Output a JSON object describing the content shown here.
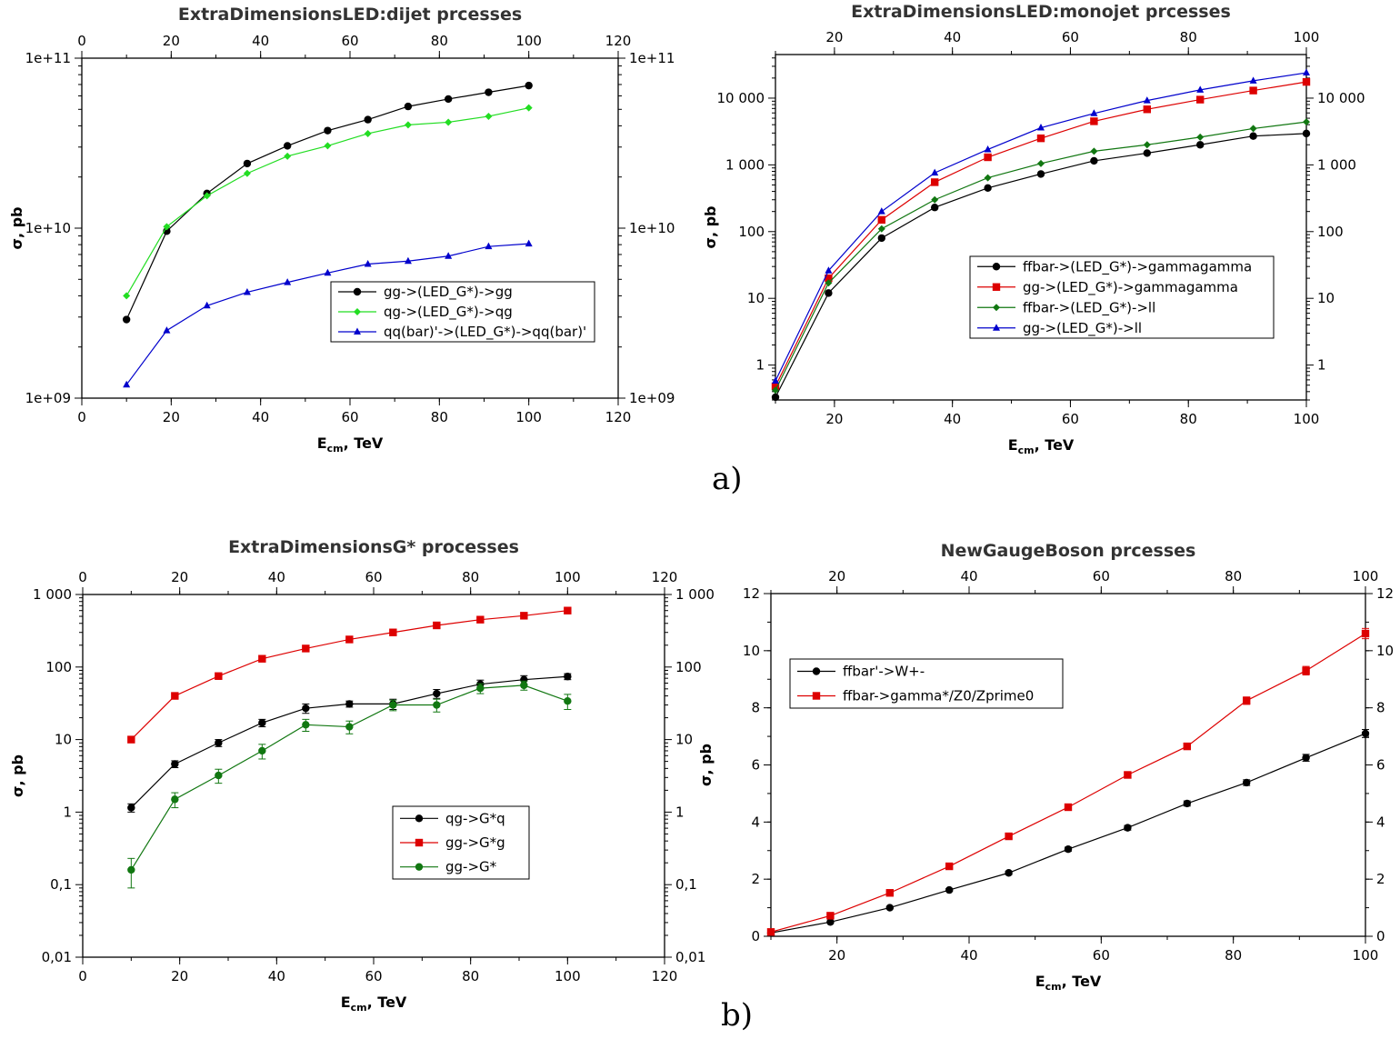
{
  "panel_labels": {
    "a": "a)",
    "b": "b)"
  },
  "chart_data": [
    {
      "type": "line",
      "scale": "log",
      "title": "ExtraDimensionsLED:dijet prcesses",
      "xlabel_main": "E",
      "xlabel_sub": "cm",
      "xlabel_unit": ", TeV",
      "ylabel": "σ, pb",
      "xlim": [
        0,
        120
      ],
      "ylim": [
        1000000000.0,
        100000000000.0
      ],
      "x_ticks": [
        0,
        20,
        40,
        60,
        80,
        100,
        120
      ],
      "x_tick_labels": [
        "0",
        "20",
        "40",
        "60",
        "80",
        "100",
        "120"
      ],
      "y_ticks": [
        1000000000.0,
        10000000000.0,
        100000000000.0
      ],
      "y_tick_labels": [
        "1e+09",
        "1e+10",
        "1e+11"
      ],
      "x": [
        10,
        19,
        28,
        37,
        46,
        55,
        64,
        73,
        82,
        91,
        100
      ],
      "legend_position": "center-right",
      "series": [
        {
          "name": "gg->(LED_G*)->gg",
          "color": "#000000",
          "marker": "circle",
          "values": [
            2900000000.0,
            9600000000.0,
            16000000000.0,
            24000000000.0,
            30500000000.0,
            37500000000.0,
            43500000000.0,
            52000000000.0,
            57500000000.0,
            63000000000.0,
            69000000000.0
          ]
        },
        {
          "name": "qg->(LED_G*)->qg",
          "color": "#22dd22",
          "marker": "diamond",
          "values": [
            4000000000.0,
            10200000000.0,
            15500000000.0,
            21000000000.0,
            26500000000.0,
            30500000000.0,
            36000000000.0,
            40500000000.0,
            42000000000.0,
            45500000000.0,
            51000000000.0
          ]
        },
        {
          "name": "qq(bar)'->(LED_G*)->qq(bar)'",
          "color": "#0000cc",
          "marker": "triangle",
          "values": [
            1200000000.0,
            2500000000.0,
            3500000000.0,
            4200000000.0,
            4800000000.0,
            5450000000.0,
            6150000000.0,
            6400000000.0,
            6850000000.0,
            7800000000.0,
            8100000000.0
          ]
        }
      ]
    },
    {
      "type": "line",
      "scale": "log",
      "title": "ExtraDimensionsLED:monojet prcesses",
      "xlabel_main": "E",
      "xlabel_sub": "cm",
      "xlabel_unit": ", TeV",
      "ylabel": "σ, pb",
      "xlim": [
        10,
        100
      ],
      "ylim": [
        0.3,
        45000
      ],
      "x_ticks": [
        20,
        40,
        60,
        80,
        100
      ],
      "x_tick_labels": [
        "20",
        "40",
        "60",
        "80",
        "100"
      ],
      "y_ticks": [
        1,
        10,
        100,
        1000,
        10000
      ],
      "y_tick_labels": [
        "1",
        "10",
        "100",
        "1 000",
        "10 000"
      ],
      "x": [
        10,
        19,
        28,
        37,
        46,
        55,
        64,
        73,
        82,
        91,
        100
      ],
      "legend_position": "center-right",
      "series": [
        {
          "name": "ffbar->(LED_G*)->gammagamma",
          "color": "#000000",
          "marker": "circle",
          "values": [
            0.33,
            12,
            80,
            230,
            450,
            730,
            1150,
            1500,
            2000,
            2700,
            2950
          ]
        },
        {
          "name": "gg->(LED_G*)->gammagamma",
          "color": "#dd0000",
          "marker": "square",
          "values": [
            0.48,
            20,
            150,
            550,
            1300,
            2500,
            4500,
            6800,
            9500,
            13000,
            17500
          ]
        },
        {
          "name": "ffbar->(LED_G*)->ll",
          "color": "#117711",
          "marker": "diamond",
          "values": [
            0.42,
            17,
            110,
            300,
            640,
            1050,
            1600,
            2000,
            2600,
            3500,
            4400
          ]
        },
        {
          "name": "gg->(LED_G*)->ll",
          "color": "#0000cc",
          "marker": "triangle",
          "values": [
            0.58,
            26,
            200,
            760,
            1700,
            3600,
            5900,
            9200,
            13300,
            18200,
            24000
          ]
        }
      ]
    },
    {
      "type": "line",
      "scale": "log",
      "title": "ExtraDimensionsG* processes",
      "xlabel_main": "E",
      "xlabel_sub": "cm",
      "xlabel_unit": ", TeV",
      "ylabel": "σ, pb",
      "xlim": [
        0,
        120
      ],
      "ylim": [
        0.01,
        1000
      ],
      "x_ticks": [
        0,
        20,
        40,
        60,
        80,
        100,
        120
      ],
      "x_tick_labels": [
        "0",
        "20",
        "40",
        "60",
        "80",
        "100",
        "120"
      ],
      "y_ticks": [
        0.01,
        0.1,
        1,
        10,
        100,
        1000
      ],
      "y_tick_labels": [
        "0,01",
        "0,1",
        "1",
        "10",
        "100",
        "1 000"
      ],
      "x": [
        10,
        19,
        28,
        37,
        46,
        55,
        64,
        73,
        82,
        91,
        100
      ],
      "legend_position": "center-right",
      "series": [
        {
          "name": "qg->G*q",
          "color": "#000000",
          "marker": "circle",
          "values": [
            1.15,
            4.6,
            9.0,
            17,
            27,
            31,
            31,
            43,
            58,
            67,
            74
          ],
          "errors": [
            0.15,
            0.5,
            1.0,
            2.0,
            4.0,
            3.0,
            5.0,
            6.0,
            8.0,
            9.0,
            7.0
          ]
        },
        {
          "name": "gg->G*g",
          "color": "#dd0000",
          "marker": "square",
          "values": [
            10,
            40,
            75,
            130,
            180,
            240,
            300,
            375,
            450,
            510,
            600
          ]
        },
        {
          "name": "gg->G*",
          "color": "#117711",
          "marker": "circle",
          "values": [
            0.16,
            1.5,
            3.2,
            7.0,
            16,
            15,
            30,
            30,
            51,
            56,
            34
          ],
          "errors": [
            0.07,
            0.35,
            0.7,
            1.6,
            3.0,
            3.0,
            5.0,
            6.0,
            8.0,
            8.0,
            8.0
          ]
        }
      ]
    },
    {
      "type": "line",
      "scale": "linear",
      "title": "NewGaugeBoson prcesses",
      "xlabel_main": "E",
      "xlabel_sub": "cm",
      "xlabel_unit": ", TeV",
      "ylabel": "σ, pb",
      "xlim": [
        10,
        100
      ],
      "ylim": [
        0,
        12
      ],
      "x_ticks": [
        20,
        40,
        60,
        80,
        100
      ],
      "x_tick_labels": [
        "20",
        "40",
        "60",
        "80",
        "100"
      ],
      "y_ticks": [
        0,
        2,
        4,
        6,
        8,
        10,
        12
      ],
      "y_tick_labels": [
        "0",
        "2",
        "4",
        "6",
        "8",
        "10",
        "12"
      ],
      "x": [
        10,
        19,
        28,
        37,
        46,
        55,
        64,
        73,
        82,
        91,
        100
      ],
      "legend_position": "top-left",
      "series": [
        {
          "name": "ffbar'->W+-",
          "color": "#000000",
          "marker": "circle",
          "values": [
            0.12,
            0.5,
            1.0,
            1.62,
            2.22,
            3.05,
            3.8,
            4.65,
            5.38,
            6.25,
            7.1
          ],
          "errors": [
            0.02,
            0.03,
            0.04,
            0.05,
            0.06,
            0.07,
            0.08,
            0.09,
            0.1,
            0.12,
            0.14
          ]
        },
        {
          "name": "ffbar->gamma*/Z0/Zprime0",
          "color": "#dd0000",
          "marker": "square",
          "values": [
            0.15,
            0.72,
            1.52,
            2.45,
            3.5,
            4.52,
            5.65,
            6.65,
            8.25,
            9.3,
            10.6
          ],
          "errors": [
            0.02,
            0.04,
            0.05,
            0.06,
            0.07,
            0.08,
            0.1,
            0.11,
            0.13,
            0.15,
            0.18
          ]
        }
      ]
    }
  ]
}
